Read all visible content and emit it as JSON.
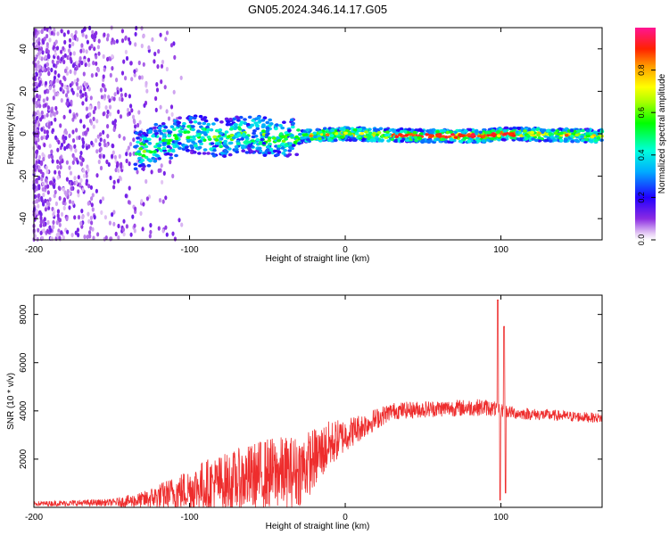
{
  "title": "GN05.2024.346.14.17.G05",
  "chart_data": [
    {
      "type": "heatmap",
      "name": "spectrogram",
      "xlabel": "Height of straight line (km)",
      "ylabel": "Frequency (Hz)",
      "xlim": [
        -200,
        165
      ],
      "ylim": [
        -50,
        50
      ],
      "xticks": [
        -200,
        -100,
        0,
        100
      ],
      "yticks": [
        -40,
        -20,
        0,
        20,
        40
      ],
      "colorbar": {
        "label": "Normalized spectral amplitude",
        "range": [
          0,
          1
        ],
        "ticks": [
          0.0,
          0.2,
          0.4,
          0.6,
          0.8
        ]
      },
      "ridge": [
        {
          "x": -130,
          "freq": -8
        },
        {
          "x": -120,
          "freq": -4
        },
        {
          "x": -100,
          "freq": 0
        },
        {
          "x": -80,
          "freq": -2
        },
        {
          "x": -60,
          "freq": 0
        },
        {
          "x": -40,
          "freq": -3
        },
        {
          "x": -25,
          "freq": -1
        },
        {
          "x": 0,
          "freq": 0
        },
        {
          "x": 50,
          "freq": -1
        },
        {
          "x": 90,
          "freq": -1
        },
        {
          "x": 100,
          "freq": 0
        },
        {
          "x": 165,
          "freq": -1
        }
      ]
    },
    {
      "type": "line",
      "name": "snr",
      "xlabel": "Height of straight line (km)",
      "ylabel": "SNR (10 * v/v)",
      "xlim": [
        -200,
        165
      ],
      "ylim": [
        0,
        8800
      ],
      "xticks": [
        -200,
        -100,
        0,
        100
      ],
      "yticks": [
        2000,
        4000,
        6000,
        8000
      ],
      "color": "#ee2d2d",
      "envelope": [
        {
          "x": -200,
          "mean": 150,
          "amp": 100
        },
        {
          "x": -150,
          "mean": 200,
          "amp": 150
        },
        {
          "x": -130,
          "mean": 300,
          "amp": 350
        },
        {
          "x": -110,
          "mean": 600,
          "amp": 700
        },
        {
          "x": -90,
          "mean": 900,
          "amp": 1100
        },
        {
          "x": -70,
          "mean": 1100,
          "amp": 1300
        },
        {
          "x": -50,
          "mean": 1400,
          "amp": 1500
        },
        {
          "x": -30,
          "mean": 1500,
          "amp": 1500
        },
        {
          "x": -20,
          "mean": 2000,
          "amp": 1300
        },
        {
          "x": -10,
          "mean": 2600,
          "amp": 1000
        },
        {
          "x": 0,
          "mean": 3000,
          "amp": 700
        },
        {
          "x": 15,
          "mean": 3500,
          "amp": 500
        },
        {
          "x": 30,
          "mean": 4000,
          "amp": 350
        },
        {
          "x": 60,
          "mean": 4100,
          "amp": 350
        },
        {
          "x": 90,
          "mean": 4150,
          "amp": 350
        },
        {
          "x": 110,
          "mean": 3900,
          "amp": 250
        },
        {
          "x": 165,
          "mean": 3700,
          "amp": 200
        }
      ],
      "spikes": [
        {
          "x": 98,
          "value": 8600
        },
        {
          "x": 99.5,
          "value": 300
        },
        {
          "x": 102,
          "value": 7500
        },
        {
          "x": 103,
          "value": 600
        }
      ]
    }
  ]
}
